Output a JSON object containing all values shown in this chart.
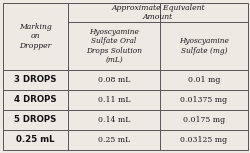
{
  "title_line1": "Approximate Equivalent",
  "title_line2": "Amount",
  "col1_header": "Marking\non\nDropper",
  "col2_header": "Hyoscyamine\nSulfate Oral\nDrops Solution\n(mL)",
  "col3_header": "Hyoscyamine\nSulfate (mg)",
  "rows": [
    {
      "marking": "3 DROPS",
      "drops_ml": "0.08 mL",
      "sulfate_mg": "0.01 mg"
    },
    {
      "marking": "4 DROPS",
      "drops_ml": "0.11 mL",
      "sulfate_mg": "0.01375 mg"
    },
    {
      "marking": "5 DROPS",
      "drops_ml": "0.14 mL",
      "sulfate_mg": "0.0175 mg"
    },
    {
      "marking": "0.25 mL",
      "drops_ml": "0.25 mL",
      "sulfate_mg": "0.03125 mg"
    }
  ],
  "bg_color": "#ede9e3",
  "border_color": "#555555"
}
